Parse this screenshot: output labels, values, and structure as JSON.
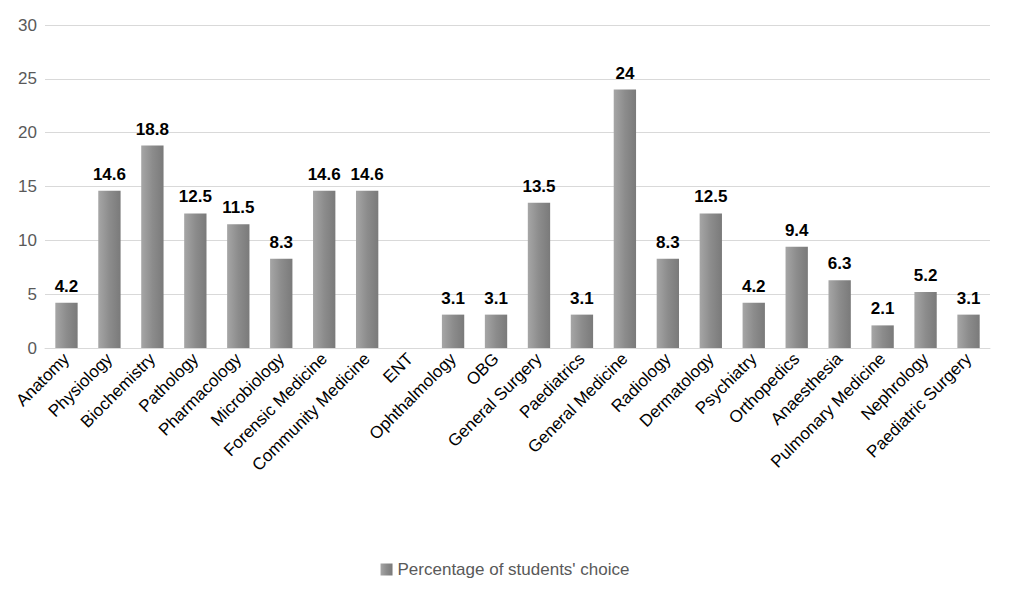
{
  "chart_data": {
    "type": "bar",
    "categories": [
      "Anatomy",
      "Physiology",
      "Biochemistry",
      "Pathology",
      "Pharmacology",
      "Microbiology",
      "Forensic Medicine",
      "Community Medicine",
      "ENT",
      "Ophthalmology",
      "OBG",
      "General Surgery",
      "Paediatrics",
      "General Medicine",
      "Radiology",
      "Dermatology",
      "Psychiatry",
      "Orthopedics",
      "Anaesthesia",
      "Pulmonary Medicine",
      "Nephrology",
      "Paediatric Surgery"
    ],
    "series": [
      {
        "name": "Percentage of students' choice",
        "color": "#8c8c8c",
        "values": [
          4.2,
          14.6,
          18.8,
          12.5,
          11.5,
          8.3,
          14.6,
          14.6,
          null,
          3.1,
          3.1,
          13.5,
          3.1,
          24,
          8.3,
          12.5,
          4.2,
          9.4,
          6.3,
          2.1,
          5.2,
          3.1
        ]
      }
    ],
    "ylim": [
      0,
      30
    ],
    "yticks": [
      0,
      5,
      10,
      15,
      20,
      25,
      30
    ],
    "grid": true,
    "legend": "bottom",
    "data_labels": true
  }
}
